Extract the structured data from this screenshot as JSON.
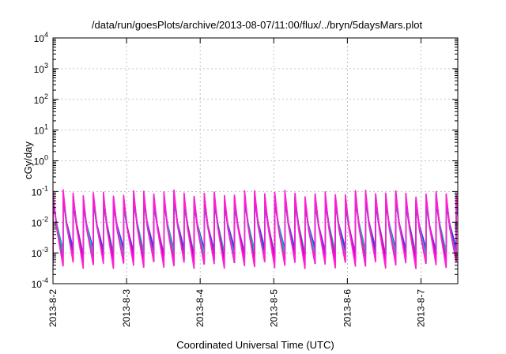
{
  "chart_data": {
    "type": "line",
    "title": "/data/run/goesPlots/archive/2013-08-07/11:00/flux/../bryn/5daysMars.plot",
    "xlabel": "Coordinated Universal Time (UTC)",
    "ylabel": "cGy/day",
    "y_scale": "log",
    "ylim": [
      0.0001,
      10000
    ],
    "xlim": [
      "2013-08-02T00:00",
      "2013-08-07T12:00"
    ],
    "y_ticks": [
      {
        "value": 0.0001,
        "mantissa": "10",
        "exp": "-4"
      },
      {
        "value": 0.001,
        "mantissa": "10",
        "exp": "-3"
      },
      {
        "value": 0.01,
        "mantissa": "10",
        "exp": "-2"
      },
      {
        "value": 0.1,
        "mantissa": "10",
        "exp": "-1"
      },
      {
        "value": 1,
        "mantissa": "10",
        "exp": "0"
      },
      {
        "value": 10,
        "mantissa": "10",
        "exp": "1"
      },
      {
        "value": 100,
        "mantissa": "10",
        "exp": "2"
      },
      {
        "value": 1000,
        "mantissa": "10",
        "exp": "3"
      },
      {
        "value": 10000,
        "mantissa": "10",
        "exp": "4"
      }
    ],
    "x_ticks": [
      {
        "value": "2013-08-02T00:00",
        "label": "2013-8-2"
      },
      {
        "value": "2013-08-03T00:00",
        "label": "2013-8-3"
      },
      {
        "value": "2013-08-04T00:00",
        "label": "2013-8-4"
      },
      {
        "value": "2013-08-05T00:00",
        "label": "2013-8-5"
      },
      {
        "value": "2013-08-06T00:00",
        "label": "2013-8-6"
      },
      {
        "value": "2013-08-07T00:00",
        "label": "2013-8-7"
      }
    ],
    "grid": true,
    "legend": "none",
    "series_colors": [
      "#3050e0",
      "#2b3fd0",
      "#00c8c8",
      "#20a090",
      "#c000c0",
      "#e000e0",
      "#ff20d0"
    ],
    "sawtooth": {
      "cycles_per_day": 7.3,
      "peak_envelope": [
        0.05,
        0.085
      ],
      "trough_envelope": [
        0.0012,
        0.0004
      ]
    }
  }
}
